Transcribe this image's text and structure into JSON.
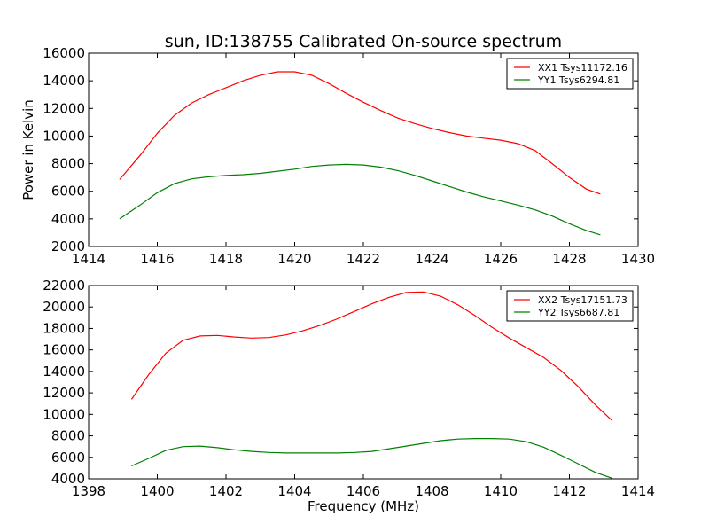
{
  "figure_title": "sun, ID:138755 Calibrated On-source spectrum",
  "ylabel_shared": "Power in Kelvin",
  "xlabel_shared": "Frequency (MHz)",
  "chart_data": [
    {
      "type": "line",
      "title": "sun, ID:138755 Calibrated On-source spectrum",
      "xlabel": "",
      "ylabel": "Power in Kelvin",
      "xlim": [
        1414,
        1430
      ],
      "ylim": [
        2000,
        16000
      ],
      "xticks": [
        1414,
        1416,
        1418,
        1420,
        1422,
        1424,
        1426,
        1428,
        1430
      ],
      "yticks": [
        2000,
        4000,
        6000,
        8000,
        10000,
        12000,
        14000,
        16000
      ],
      "grid": false,
      "legend_position": "top-right",
      "series": [
        {
          "name": "XX1 Tsys11172.16",
          "color": "#ff0000",
          "x": [
            1414.9,
            1415.5,
            1416.0,
            1416.5,
            1417.0,
            1417.5,
            1418.0,
            1418.5,
            1419.0,
            1419.5,
            1420.0,
            1420.5,
            1421.0,
            1421.5,
            1422.0,
            1422.5,
            1423.0,
            1423.5,
            1424.0,
            1424.5,
            1425.0,
            1425.5,
            1426.0,
            1426.5,
            1427.0,
            1427.5,
            1428.0,
            1428.5,
            1428.9
          ],
          "y": [
            6850,
            8600,
            10200,
            11500,
            12400,
            13000,
            13500,
            14000,
            14400,
            14650,
            14650,
            14400,
            13800,
            13100,
            12450,
            11850,
            11300,
            10900,
            10550,
            10250,
            10000,
            9850,
            9700,
            9450,
            8950,
            8000,
            7000,
            6150,
            5800
          ]
        },
        {
          "name": "YY1 Tsys6294.81",
          "color": "#008000",
          "x": [
            1414.9,
            1415.5,
            1416.0,
            1416.5,
            1417.0,
            1417.5,
            1418.0,
            1418.5,
            1419.0,
            1419.5,
            1420.0,
            1420.5,
            1421.0,
            1421.5,
            1422.0,
            1422.5,
            1423.0,
            1423.5,
            1424.0,
            1424.5,
            1425.0,
            1425.5,
            1426.0,
            1426.5,
            1427.0,
            1427.5,
            1428.0,
            1428.5,
            1428.9
          ],
          "y": [
            4000,
            5000,
            5900,
            6550,
            6900,
            7050,
            7150,
            7200,
            7300,
            7450,
            7600,
            7800,
            7900,
            7950,
            7900,
            7750,
            7500,
            7150,
            6750,
            6350,
            5950,
            5600,
            5300,
            5000,
            4650,
            4200,
            3650,
            3150,
            2850
          ]
        }
      ]
    },
    {
      "type": "line",
      "title": "",
      "xlabel": "Frequency (MHz)",
      "ylabel": "",
      "xlim": [
        1398,
        1414
      ],
      "ylim": [
        4000,
        22000
      ],
      "xticks": [
        1398,
        1400,
        1402,
        1404,
        1406,
        1408,
        1410,
        1412,
        1414
      ],
      "yticks": [
        4000,
        6000,
        8000,
        10000,
        12000,
        14000,
        16000,
        18000,
        20000,
        22000
      ],
      "grid": false,
      "legend_position": "top-right",
      "series": [
        {
          "name": "XX2 Tsys17151.73",
          "color": "#ff0000",
          "x": [
            1399.25,
            1399.75,
            1400.25,
            1400.75,
            1401.25,
            1401.75,
            1402.25,
            1402.75,
            1403.25,
            1403.75,
            1404.25,
            1404.75,
            1405.25,
            1405.75,
            1406.25,
            1406.75,
            1407.25,
            1407.75,
            1408.25,
            1408.75,
            1409.25,
            1409.75,
            1410.25,
            1410.75,
            1411.25,
            1411.75,
            1412.25,
            1412.75,
            1413.25
          ],
          "y": [
            11400,
            13700,
            15700,
            16900,
            17300,
            17350,
            17200,
            17100,
            17150,
            17400,
            17800,
            18300,
            18900,
            19600,
            20300,
            20900,
            21350,
            21400,
            21000,
            20200,
            19200,
            18100,
            17100,
            16200,
            15300,
            14100,
            12600,
            10900,
            9400
          ]
        },
        {
          "name": "YY2 Tsys6687.81",
          "color": "#008000",
          "x": [
            1399.25,
            1399.75,
            1400.25,
            1400.75,
            1401.25,
            1401.75,
            1402.25,
            1402.75,
            1403.25,
            1403.75,
            1404.25,
            1404.75,
            1405.25,
            1405.75,
            1406.25,
            1406.75,
            1407.25,
            1407.75,
            1408.25,
            1408.75,
            1409.25,
            1409.75,
            1410.25,
            1410.75,
            1411.25,
            1411.75,
            1412.25,
            1412.75,
            1413.25
          ],
          "y": [
            5200,
            5900,
            6650,
            7000,
            7050,
            6900,
            6700,
            6550,
            6450,
            6400,
            6400,
            6400,
            6400,
            6450,
            6550,
            6800,
            7050,
            7300,
            7550,
            7700,
            7750,
            7750,
            7700,
            7450,
            6950,
            6200,
            5400,
            4600,
            4050
          ]
        }
      ]
    }
  ]
}
